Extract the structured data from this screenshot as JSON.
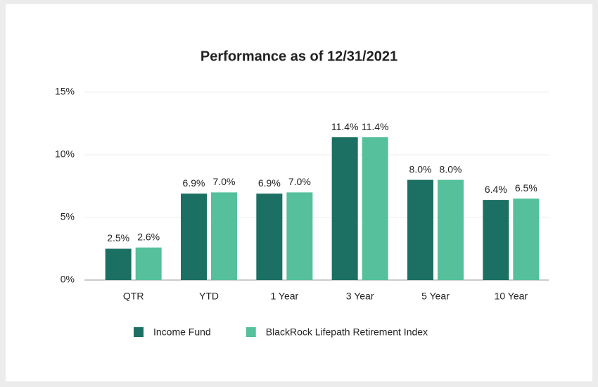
{
  "chart_data": {
    "type": "bar",
    "title": "Performance as of 12/31/2021",
    "categories": [
      "QTR",
      "YTD",
      "1 Year",
      "3 Year",
      "5 Year",
      "10 Year"
    ],
    "series": [
      {
        "name": "Income Fund",
        "color": "#1c7063",
        "values": [
          2.5,
          6.9,
          6.9,
          11.4,
          8.0,
          6.4
        ],
        "value_labels": [
          "2.5%",
          "6.9%",
          "6.9%",
          "11.4%",
          "8.0%",
          "6.4%"
        ]
      },
      {
        "name": "BlackRock Lifepath Retirement Index",
        "color": "#55c09b",
        "values": [
          2.6,
          7.0,
          7.0,
          11.4,
          8.0,
          6.5
        ],
        "value_labels": [
          "2.6%",
          "7.0%",
          "7.0%",
          "11.4%",
          "8.0%",
          "6.5%"
        ]
      }
    ],
    "ylim": [
      0,
      15
    ],
    "yticks": [
      {
        "value": 0,
        "label": "0%"
      },
      {
        "value": 5,
        "label": "5%"
      },
      {
        "value": 10,
        "label": "10%"
      },
      {
        "value": 15,
        "label": "15%"
      }
    ],
    "grid": true,
    "legend": "bottom"
  }
}
